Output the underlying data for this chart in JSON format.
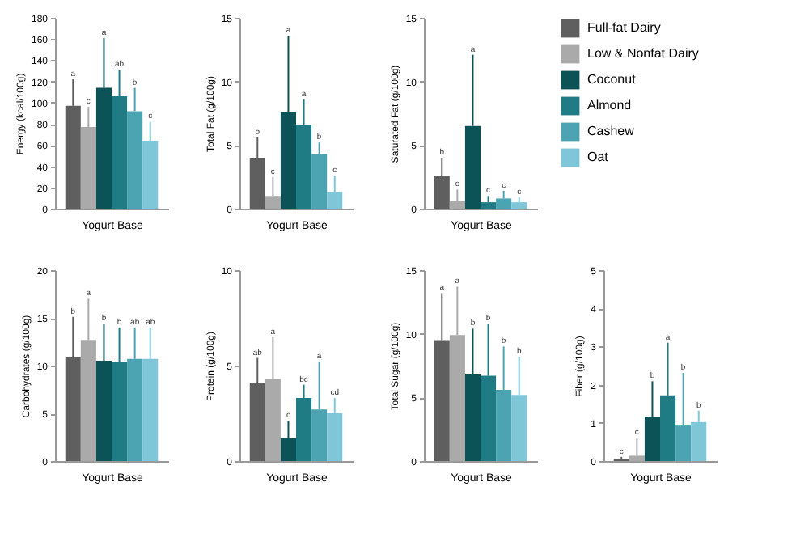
{
  "chart_data": [
    {
      "type": "bar",
      "xlabel": "Yogurt Base",
      "ylabel": "Energy (kcal/100g)",
      "categories": [
        null
      ],
      "ylim": [
        0,
        180
      ],
      "yticks": [
        0,
        20,
        40,
        60,
        80,
        100,
        120,
        140,
        160,
        180
      ],
      "legend": false,
      "series": [
        {
          "color": "#5f5f5f",
          "values": [
            97
          ],
          "errors": [
            [
              97,
              122
            ]
          ]
        },
        {
          "color": "#aaaaaa",
          "values": [
            77
          ],
          "errors": [
            [
              77,
              96
            ]
          ]
        },
        {
          "color": "#0b5356",
          "values": [
            114
          ],
          "errors": [
            [
              114,
              161
            ]
          ]
        },
        {
          "color": "#1f7c85",
          "values": [
            106
          ],
          "errors": [
            [
              106,
              131
            ]
          ]
        },
        {
          "color": "#4ca4b2",
          "values": [
            92
          ],
          "errors": [
            [
              92,
              114
            ]
          ]
        },
        {
          "color": "#7fc6d8",
          "values": [
            64
          ],
          "errors": [
            [
              64,
              82
            ]
          ]
        }
      ],
      "annotations": [
        {
          "text": "a",
          "y": 122
        },
        {
          "text": "c",
          "y": 96
        },
        {
          "text": "a",
          "y": 161
        },
        {
          "text": "ab",
          "y": 131
        },
        {
          "text": "b",
          "y": 114
        },
        {
          "text": "c",
          "y": 82
        }
      ]
    },
    {
      "type": "bar",
      "xlabel": "Yogurt Base",
      "ylabel": "Total Fat (g/100g)",
      "categories": [
        null
      ],
      "ylim": [
        0,
        15
      ],
      "yticks": [
        0,
        5,
        10,
        15
      ],
      "legend": false,
      "series": [
        {
          "color": "#5f5f5f",
          "values": [
            4.0
          ],
          "errors": [
            [
              4.0,
              5.6
            ]
          ]
        },
        {
          "color": "#aaaaaa",
          "values": [
            1.0
          ],
          "errors": [
            [
              1.0,
              2.5
            ]
          ]
        },
        {
          "color": "#0b5356",
          "values": [
            7.6
          ],
          "errors": [
            [
              7.6,
              13.6
            ]
          ]
        },
        {
          "color": "#1f7c85",
          "values": [
            6.6
          ],
          "errors": [
            [
              6.6,
              8.6
            ]
          ]
        },
        {
          "color": "#4ca4b2",
          "values": [
            4.3
          ],
          "errors": [
            [
              4.3,
              5.2
            ]
          ]
        },
        {
          "color": "#7fc6d8",
          "values": [
            1.3
          ],
          "errors": [
            [
              1.3,
              2.6
            ]
          ]
        }
      ],
      "annotations": [
        {
          "text": "b",
          "y": 5.6
        },
        {
          "text": "c",
          "y": 2.5
        },
        {
          "text": "a",
          "y": 13.6
        },
        {
          "text": "a",
          "y": 8.6
        },
        {
          "text": "b",
          "y": 5.2
        },
        {
          "text": "c",
          "y": 2.6
        }
      ]
    },
    {
      "type": "bar",
      "xlabel": "Yogurt Base",
      "ylabel": "Saturated Fat (g/100g)",
      "categories": [
        null
      ],
      "ylim": [
        0,
        15
      ],
      "yticks": [
        0,
        5,
        10,
        15
      ],
      "legend": "right",
      "series": [
        {
          "name": "Full-fat Dairy",
          "color": "#5f5f5f",
          "values": [
            2.6
          ],
          "errors": [
            [
              2.6,
              4.0
            ]
          ]
        },
        {
          "name": "Low & Nonfat Dairy",
          "color": "#aaaaaa",
          "values": [
            0.6
          ],
          "errors": [
            [
              0.6,
              1.5
            ]
          ]
        },
        {
          "name": "Coconut",
          "color": "#0b5356",
          "values": [
            6.5
          ],
          "errors": [
            [
              6.5,
              12.1
            ]
          ]
        },
        {
          "name": "Almond",
          "color": "#1f7c85",
          "values": [
            0.5
          ],
          "errors": [
            [
              0.5,
              1.0
            ]
          ]
        },
        {
          "name": "Cashew",
          "color": "#4ca4b2",
          "values": [
            0.8
          ],
          "errors": [
            [
              0.8,
              1.4
            ]
          ]
        },
        {
          "name": "Oat",
          "color": "#7fc6d8",
          "values": [
            0.5
          ],
          "errors": [
            [
              0.5,
              0.9
            ]
          ]
        }
      ],
      "annotations": [
        {
          "text": "b",
          "y": 4.0
        },
        {
          "text": "c",
          "y": 1.5
        },
        {
          "text": "a",
          "y": 12.1
        },
        {
          "text": "c",
          "y": 1.0
        },
        {
          "text": "c",
          "y": 1.4
        },
        {
          "text": "c",
          "y": 0.9
        }
      ]
    },
    {
      "type": "bar",
      "xlabel": "Yogurt Base",
      "ylabel": "Carbohydrates (g/100g)",
      "categories": [
        null
      ],
      "ylim": [
        0,
        20
      ],
      "yticks": [
        0,
        5,
        10,
        15,
        20
      ],
      "legend": false,
      "series": [
        {
          "color": "#5f5f5f",
          "values": [
            10.9
          ],
          "errors": [
            [
              10.9,
              15.1
            ]
          ]
        },
        {
          "color": "#aaaaaa",
          "values": [
            12.7
          ],
          "errors": [
            [
              12.7,
              17.0
            ]
          ]
        },
        {
          "color": "#0b5356",
          "values": [
            10.5
          ],
          "errors": [
            [
              10.5,
              14.4
            ]
          ]
        },
        {
          "color": "#1f7c85",
          "values": [
            10.4
          ],
          "errors": [
            [
              10.4,
              14.0
            ]
          ]
        },
        {
          "color": "#4ca4b2",
          "values": [
            10.7
          ],
          "errors": [
            [
              10.7,
              14.0
            ]
          ]
        },
        {
          "color": "#7fc6d8",
          "values": [
            10.7
          ],
          "errors": [
            [
              10.7,
              14.0
            ]
          ]
        }
      ],
      "annotations": [
        {
          "text": "b",
          "y": 15.1
        },
        {
          "text": "a",
          "y": 17.0
        },
        {
          "text": "b",
          "y": 14.4
        },
        {
          "text": "b",
          "y": 14.0
        },
        {
          "text": "ab",
          "y": 14.0
        },
        {
          "text": "ab",
          "y": 14.0
        }
      ]
    },
    {
      "type": "bar",
      "xlabel": "Yogurt Base",
      "ylabel": "Protein (g/100g)",
      "categories": [
        null
      ],
      "ylim": [
        0,
        10
      ],
      "yticks": [
        0,
        5,
        10
      ],
      "legend": false,
      "series": [
        {
          "color": "#5f5f5f",
          "values": [
            4.1
          ],
          "errors": [
            [
              4.1,
              5.4
            ]
          ]
        },
        {
          "color": "#aaaaaa",
          "values": [
            4.3
          ],
          "errors": [
            [
              4.3,
              6.5
            ]
          ]
        },
        {
          "color": "#0b5356",
          "values": [
            1.2
          ],
          "errors": [
            [
              1.2,
              2.1
            ]
          ]
        },
        {
          "color": "#1f7c85",
          "values": [
            3.3
          ],
          "errors": [
            [
              3.3,
              4.0
            ]
          ]
        },
        {
          "color": "#4ca4b2",
          "values": [
            2.7
          ],
          "errors": [
            [
              2.7,
              5.2
            ]
          ]
        },
        {
          "color": "#7fc6d8",
          "values": [
            2.5
          ],
          "errors": [
            [
              2.5,
              3.3
            ]
          ]
        }
      ],
      "annotations": [
        {
          "text": "ab",
          "y": 5.4
        },
        {
          "text": "a",
          "y": 6.5
        },
        {
          "text": "c",
          "y": 2.1
        },
        {
          "text": "bc",
          "y": 4.0
        },
        {
          "text": "a",
          "y": 5.2
        },
        {
          "text": "cd",
          "y": 3.3
        }
      ]
    },
    {
      "type": "bar",
      "xlabel": "Yogurt Base",
      "ylabel": "Total Sugar (g/100g)",
      "categories": [
        null
      ],
      "ylim": [
        0,
        15
      ],
      "yticks": [
        0,
        5,
        10,
        15
      ],
      "legend": false,
      "series": [
        {
          "color": "#5f5f5f",
          "values": [
            9.5
          ],
          "errors": [
            [
              9.5,
              13.2
            ]
          ]
        },
        {
          "color": "#aaaaaa",
          "values": [
            9.9
          ],
          "errors": [
            [
              9.9,
              13.7
            ]
          ]
        },
        {
          "color": "#0b5356",
          "values": [
            6.8
          ],
          "errors": [
            [
              6.8,
              10.4
            ]
          ]
        },
        {
          "color": "#1f7c85",
          "values": [
            6.7
          ],
          "errors": [
            [
              6.7,
              10.8
            ]
          ]
        },
        {
          "color": "#4ca4b2",
          "values": [
            5.6
          ],
          "errors": [
            [
              5.6,
              9.0
            ]
          ]
        },
        {
          "color": "#7fc6d8",
          "values": [
            5.2
          ],
          "errors": [
            [
              5.2,
              8.2
            ]
          ]
        }
      ],
      "annotations": [
        {
          "text": "a",
          "y": 13.2
        },
        {
          "text": "a",
          "y": 13.7
        },
        {
          "text": "b",
          "y": 10.4
        },
        {
          "text": "b",
          "y": 10.8
        },
        {
          "text": "b",
          "y": 9.0
        },
        {
          "text": "b",
          "y": 8.2
        }
      ]
    },
    {
      "type": "bar",
      "xlabel": "Yogurt Base",
      "ylabel": "Fiber (g/100g)",
      "categories": [
        null
      ],
      "ylim": [
        0,
        5
      ],
      "yticks": [
        0,
        1,
        2,
        3,
        4,
        5
      ],
      "legend": false,
      "series": [
        {
          "color": "#5f5f5f",
          "values": [
            0.05
          ],
          "errors": [
            [
              0.05,
              0.11
            ]
          ]
        },
        {
          "color": "#aaaaaa",
          "values": [
            0.14
          ],
          "errors": [
            [
              0.14,
              0.62
            ]
          ]
        },
        {
          "color": "#0b5356",
          "values": [
            1.16
          ],
          "errors": [
            [
              1.16,
              2.09
            ]
          ]
        },
        {
          "color": "#1f7c85",
          "values": [
            1.72
          ],
          "errors": [
            [
              1.72,
              3.1
            ]
          ]
        },
        {
          "color": "#4ca4b2",
          "values": [
            0.93
          ],
          "errors": [
            [
              0.93,
              2.31
            ]
          ]
        },
        {
          "color": "#7fc6d8",
          "values": [
            1.02
          ],
          "errors": [
            [
              1.02,
              1.32
            ]
          ]
        }
      ],
      "annotations": [
        {
          "text": "c",
          "y": 0.11
        },
        {
          "text": "c",
          "y": 0.62
        },
        {
          "text": "b",
          "y": 2.09
        },
        {
          "text": "a",
          "y": 3.1
        },
        {
          "text": "b",
          "y": 2.31
        },
        {
          "text": "b",
          "y": 1.32
        }
      ]
    }
  ]
}
